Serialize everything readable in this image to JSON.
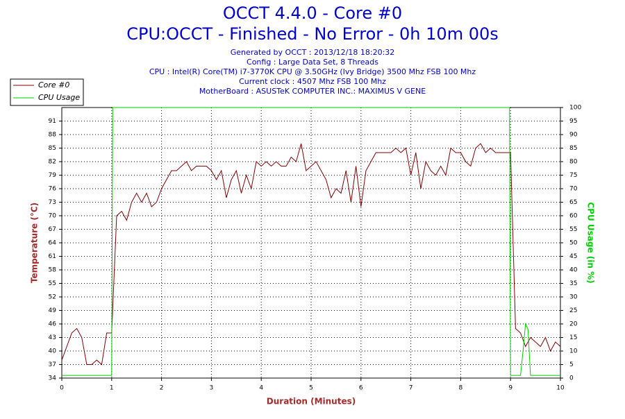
{
  "chart_data": {
    "type": "line",
    "title": "OCCT 4.4.0 - Core #0",
    "subtitle": "CPU:OCCT - Finished - No Error - 0h 10m 00s",
    "info": [
      "Generated by OCCT : 2013/12/18 18:20:32",
      "Config : Large Data Set, 8 Threads",
      "CPU : Intel(R) Core(TM) i7-3770K CPU @ 3.50GHz (Ivy Bridge) 3500 Mhz FSB 100 Mhz",
      "Current clock : 4507 Mhz FSB 100 Mhz",
      "MotherBoard : ASUSTeK COMPUTER INC.: MAXIMUS V GENE"
    ],
    "x_label": "Duration (Minutes)",
    "y_label": "Temperature (°C)",
    "y2_label": "CPU Usage (in %)",
    "xlim": [
      0,
      10
    ],
    "xticks": [
      0,
      1,
      2,
      3,
      4,
      5,
      6,
      7,
      8,
      9,
      10
    ],
    "ylim": [
      34,
      94
    ],
    "yticks": [
      34,
      37,
      40,
      43,
      46,
      49,
      52,
      55,
      58,
      61,
      64,
      67,
      70,
      73,
      76,
      79,
      82,
      85,
      88,
      91
    ],
    "y2lim": [
      0,
      100
    ],
    "y2ticks": [
      0,
      5,
      10,
      15,
      20,
      25,
      30,
      35,
      40,
      45,
      50,
      55,
      60,
      65,
      70,
      75,
      80,
      85,
      90,
      95,
      100
    ],
    "grid": true,
    "legend": "top-left",
    "series": [
      {
        "name": "Core #0",
        "color": "#800000",
        "x": [
          0,
          0.1,
          0.2,
          0.3,
          0.4,
          0.5,
          0.6,
          0.7,
          0.8,
          0.9,
          1.0,
          1.1,
          1.2,
          1.3,
          1.4,
          1.5,
          1.6,
          1.7,
          1.8,
          1.9,
          2.0,
          2.1,
          2.2,
          2.3,
          2.4,
          2.5,
          2.6,
          2.7,
          2.8,
          2.9,
          3.0,
          3.1,
          3.2,
          3.3,
          3.4,
          3.5,
          3.6,
          3.7,
          3.8,
          3.9,
          4.0,
          4.1,
          4.2,
          4.3,
          4.4,
          4.5,
          4.6,
          4.7,
          4.8,
          4.9,
          5.0,
          5.1,
          5.2,
          5.3,
          5.4,
          5.5,
          5.6,
          5.7,
          5.8,
          5.9,
          6.0,
          6.1,
          6.2,
          6.3,
          6.4,
          6.5,
          6.6,
          6.7,
          6.8,
          6.9,
          7.0,
          7.1,
          7.2,
          7.3,
          7.4,
          7.5,
          7.6,
          7.7,
          7.8,
          7.9,
          8.0,
          8.1,
          8.2,
          8.3,
          8.4,
          8.5,
          8.6,
          8.7,
          8.8,
          8.9,
          9.0,
          9.1,
          9.2,
          9.3,
          9.4,
          9.5,
          9.6,
          9.7,
          9.8,
          9.9,
          10.0
        ],
        "values": [
          38,
          41,
          44,
          45,
          43,
          37,
          37,
          38,
          37,
          44,
          44,
          70,
          71,
          69,
          73,
          75,
          73,
          75,
          72,
          73,
          76,
          78,
          80,
          80,
          81,
          82,
          80,
          81,
          81,
          81,
          80,
          78,
          80,
          74,
          78,
          80,
          75,
          79,
          76,
          82,
          81,
          82,
          81,
          82,
          81,
          81,
          83,
          82,
          86,
          80,
          81,
          82,
          80,
          78,
          74,
          76,
          75,
          80,
          73,
          81,
          72,
          80,
          82,
          84,
          84,
          84,
          84,
          85,
          84,
          85,
          79,
          84,
          76,
          82,
          80,
          79,
          81,
          79,
          85,
          84,
          84,
          82,
          81,
          85,
          86,
          84,
          85,
          84,
          84,
          84,
          84,
          45,
          44,
          41,
          43,
          42,
          41,
          43,
          40,
          42,
          41
        ]
      },
      {
        "name": "CPU Usage",
        "color": "#00cc00",
        "axis": "y2",
        "x": [
          0,
          0.95,
          1.0,
          1.02,
          8.98,
          9.0,
          9.2,
          9.25,
          9.3,
          9.35,
          9.4,
          10
        ],
        "values": [
          1,
          1,
          1,
          100,
          100,
          1,
          1,
          10,
          20,
          18,
          1,
          1
        ]
      }
    ]
  }
}
